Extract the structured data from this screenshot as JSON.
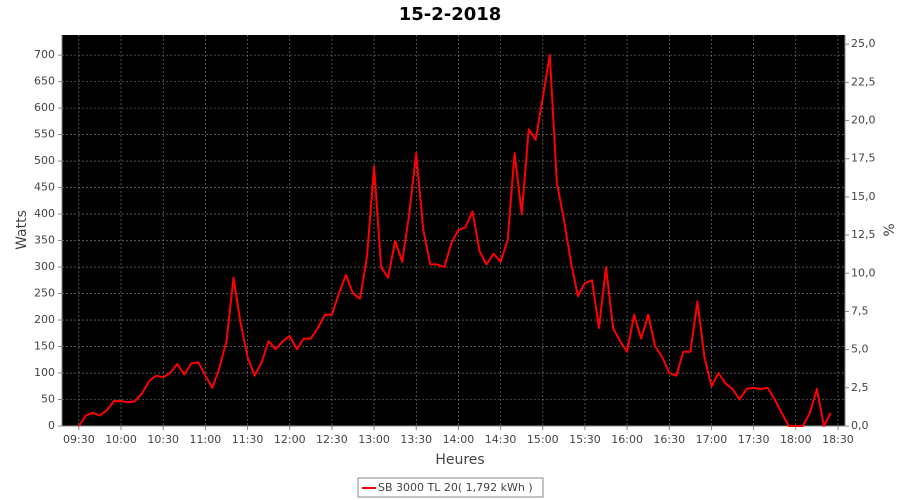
{
  "chart_data": {
    "type": "line",
    "title": "15-2-2018",
    "x_label": "Heures",
    "y_label": "Watts",
    "y2_label": "%",
    "x": [
      "09:30",
      "09:35",
      "09:40",
      "09:45",
      "09:50",
      "09:55",
      "10:00",
      "10:05",
      "10:10",
      "10:15",
      "10:20",
      "10:25",
      "10:30",
      "10:35",
      "10:40",
      "10:45",
      "10:50",
      "10:55",
      "11:00",
      "11:05",
      "11:10",
      "11:15",
      "11:20",
      "11:25",
      "11:30",
      "11:35",
      "11:40",
      "11:45",
      "11:50",
      "11:55",
      "12:00",
      "12:05",
      "12:10",
      "12:15",
      "12:20",
      "12:25",
      "12:30",
      "12:35",
      "12:40",
      "12:45",
      "12:50",
      "12:55",
      "13:00",
      "13:05",
      "13:10",
      "13:15",
      "13:20",
      "13:25",
      "13:30",
      "13:35",
      "13:40",
      "13:45",
      "13:50",
      "13:55",
      "14:00",
      "14:05",
      "14:10",
      "14:15",
      "14:20",
      "14:25",
      "14:30",
      "14:35",
      "14:40",
      "14:45",
      "14:50",
      "14:55",
      "15:00",
      "15:05",
      "15:10",
      "15:15",
      "15:20",
      "15:25",
      "15:30",
      "15:35",
      "15:40",
      "15:45",
      "15:50",
      "15:55",
      "16:00",
      "16:05",
      "16:10",
      "16:15",
      "16:20",
      "16:25",
      "16:30",
      "16:35",
      "16:40",
      "16:45",
      "16:50",
      "16:55",
      "17:00",
      "17:05",
      "17:10",
      "17:15",
      "17:20",
      "17:25",
      "17:30",
      "17:35",
      "17:40",
      "17:45",
      "17:50",
      "17:55",
      "18:00",
      "18:05",
      "18:10",
      "18:15",
      "18:20",
      "18:25"
    ],
    "series": [
      {
        "name": "SB 3000 TL 20( 1,792 kWh )",
        "color": "#ff0000",
        "values": [
          0,
          20,
          25,
          20,
          30,
          47,
          47,
          45,
          47,
          62,
          85,
          95,
          92,
          100,
          117,
          97,
          118,
          120,
          95,
          72,
          110,
          160,
          280,
          195,
          130,
          95,
          120,
          160,
          145,
          160,
          170,
          145,
          165,
          165,
          185,
          210,
          210,
          250,
          285,
          250,
          240,
          320,
          490,
          300,
          280,
          350,
          310,
          400,
          515,
          370,
          305,
          305,
          300,
          345,
          370,
          375,
          405,
          330,
          305,
          325,
          310,
          350,
          515,
          400,
          560,
          540,
          620,
          700,
          460,
          390,
          310,
          245,
          270,
          275,
          185,
          300,
          185,
          160,
          140,
          210,
          165,
          210,
          150,
          130,
          100,
          95,
          140,
          140,
          235,
          130,
          75,
          100,
          80,
          70,
          50,
          70,
          72,
          70,
          72,
          50,
          25,
          0,
          0,
          0,
          25,
          70,
          0,
          25
        ]
      }
    ],
    "xlim": [
      "09:18",
      "18:35"
    ],
    "xticks": [
      "09:30",
      "10:00",
      "10:30",
      "11:00",
      "11:30",
      "12:00",
      "12:30",
      "13:00",
      "13:30",
      "14:00",
      "14:30",
      "15:00",
      "15:30",
      "16:00",
      "16:30",
      "17:00",
      "17:30",
      "18:00",
      "18:30"
    ],
    "ylim": [
      0,
      738
    ],
    "yticks": [
      0,
      50,
      100,
      150,
      200,
      250,
      300,
      350,
      400,
      450,
      500,
      550,
      600,
      650,
      700
    ],
    "y2lim": [
      0,
      25.6
    ],
    "y2ticks": [
      {
        "value": 0,
        "label": "0,0"
      },
      {
        "value": 2.5,
        "label": "2,5"
      },
      {
        "value": 5,
        "label": "5,0"
      },
      {
        "value": 7.5,
        "label": "7,5"
      },
      {
        "value": 10,
        "label": "10,0"
      },
      {
        "value": 12.5,
        "label": "12,5"
      },
      {
        "value": 15,
        "label": "15,0"
      },
      {
        "value": 17.5,
        "label": "17,5"
      },
      {
        "value": 20,
        "label": "20,0"
      },
      {
        "value": 22.5,
        "label": "22,5"
      },
      {
        "value": 25,
        "label": "25,0"
      }
    ],
    "grid": true,
    "legend": "bottom"
  }
}
